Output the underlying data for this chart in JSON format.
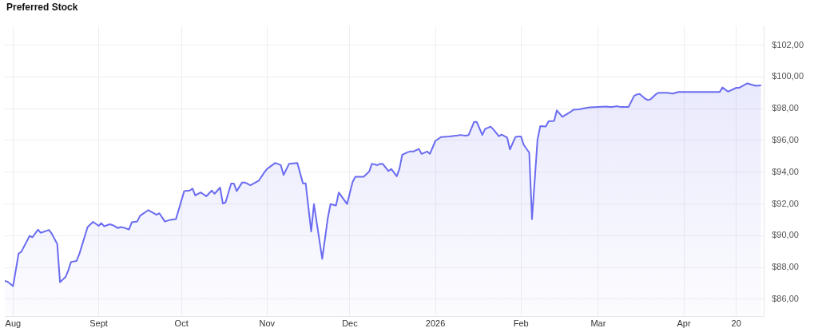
{
  "chart_data": {
    "type": "area",
    "title": "Preferred Stock",
    "x": [
      "2025-07-29",
      "2025-07-30",
      "2025-08-01",
      "2025-08-03",
      "2025-08-04",
      "2025-08-07",
      "2025-08-08",
      "2025-08-10",
      "2025-08-11",
      "2025-08-14",
      "2025-08-15",
      "2025-08-17",
      "2025-08-18",
      "2025-08-20",
      "2025-08-21",
      "2025-08-22",
      "2025-08-24",
      "2025-08-25",
      "2025-08-28",
      "2025-08-30",
      "2025-09-01",
      "2025-09-02",
      "2025-09-03",
      "2025-09-05",
      "2025-09-06",
      "2025-09-08",
      "2025-09-09",
      "2025-09-10",
      "2025-09-12",
      "2025-09-13",
      "2025-09-15",
      "2025-09-16",
      "2025-09-19",
      "2025-09-22",
      "2025-09-23",
      "2025-09-25",
      "2025-09-27",
      "2025-09-29",
      "2025-10-02",
      "2025-10-04",
      "2025-10-05",
      "2025-10-06",
      "2025-10-08",
      "2025-10-10",
      "2025-10-12",
      "2025-10-13",
      "2025-10-15",
      "2025-10-16",
      "2025-10-17",
      "2025-10-19",
      "2025-10-20",
      "2025-10-21",
      "2025-10-23",
      "2025-10-24",
      "2025-10-26",
      "2025-10-29",
      "2025-10-31",
      "2025-11-01",
      "2025-11-02",
      "2025-11-04",
      "2025-11-06",
      "2025-11-07",
      "2025-11-09",
      "2025-11-12",
      "2025-11-14",
      "2025-11-15",
      "2025-11-17",
      "2025-11-18",
      "2025-11-21",
      "2025-11-23",
      "2025-11-24",
      "2025-11-26",
      "2025-11-27",
      "2025-11-29",
      "2025-11-30",
      "2025-12-02",
      "2025-12-03",
      "2025-12-06",
      "2025-12-08",
      "2025-12-09",
      "2025-12-11",
      "2025-12-12",
      "2025-12-13",
      "2025-12-15",
      "2025-12-16",
      "2025-12-18",
      "2025-12-19",
      "2025-12-20",
      "2025-12-22",
      "2025-12-23",
      "2025-12-24",
      "2025-12-26",
      "2025-12-27",
      "2025-12-29",
      "2025-12-30",
      "2026-01-01",
      "2026-01-03",
      "2026-01-06",
      "2026-01-09",
      "2026-01-10",
      "2026-01-12",
      "2026-01-13",
      "2026-01-15",
      "2026-01-16",
      "2026-01-18",
      "2026-01-19",
      "2026-01-21",
      "2026-01-22",
      "2026-01-24",
      "2026-01-25",
      "2026-01-27",
      "2026-01-28",
      "2026-01-30",
      "2026-01-31",
      "2026-02-01",
      "2026-02-02",
      "2026-02-04",
      "2026-02-05",
      "2026-02-07",
      "2026-02-08",
      "2026-02-10",
      "2026-02-11",
      "2026-02-13",
      "2026-02-14",
      "2026-02-16",
      "2026-02-19",
      "2026-02-20",
      "2026-02-22",
      "2026-02-25",
      "2026-02-26",
      "2026-03-01",
      "2026-03-04",
      "2026-03-05",
      "2026-03-06",
      "2026-03-08",
      "2026-03-09",
      "2026-03-12",
      "2026-03-14",
      "2026-03-15",
      "2026-03-16",
      "2026-03-18",
      "2026-03-19",
      "2026-03-20",
      "2026-03-22",
      "2026-03-23",
      "2026-03-26",
      "2026-03-28",
      "2026-03-30",
      "2026-04-01",
      "2026-04-14",
      "2026-04-15",
      "2026-04-17",
      "2026-04-20",
      "2026-04-21",
      "2026-04-24",
      "2026-04-27",
      "2026-04-29"
    ],
    "series": [
      {
        "color": "#6b6cf0",
        "values": [
          87.15,
          87.1,
          86.82,
          88.87,
          88.99,
          89.99,
          89.9,
          90.38,
          90.18,
          90.36,
          90.13,
          89.48,
          87.07,
          87.4,
          87.81,
          88.35,
          88.41,
          88.84,
          90.54,
          90.87,
          90.62,
          90.79,
          90.59,
          90.72,
          90.67,
          90.48,
          90.54,
          90.51,
          90.39,
          90.84,
          90.9,
          91.25,
          91.61,
          91.31,
          91.41,
          90.89,
          91.0,
          91.04,
          92.81,
          92.84,
          92.97,
          92.54,
          92.72,
          92.48,
          92.84,
          92.64,
          93.03,
          92.02,
          92.1,
          93.28,
          93.28,
          92.81,
          93.35,
          93.35,
          93.17,
          93.46,
          93.98,
          94.2,
          94.33,
          94.58,
          94.44,
          93.82,
          94.53,
          94.58,
          93.3,
          93.3,
          90.26,
          91.99,
          88.54,
          91.08,
          91.99,
          91.9,
          92.72,
          92.23,
          91.99,
          93.38,
          93.71,
          93.71,
          94.03,
          94.53,
          94.44,
          94.53,
          94.51,
          94.07,
          94.2,
          93.74,
          94.23,
          95.1,
          95.26,
          95.31,
          95.3,
          95.46,
          95.15,
          95.3,
          95.15,
          95.97,
          96.21,
          96.25,
          96.31,
          96.34,
          96.3,
          96.33,
          97.16,
          97.16,
          96.34,
          96.72,
          96.87,
          96.69,
          96.26,
          96.36,
          96.18,
          95.43,
          96.21,
          96.25,
          96.25,
          95.72,
          95.23,
          91.04,
          96.05,
          96.9,
          96.87,
          97.2,
          97.23,
          97.89,
          97.48,
          97.8,
          97.93,
          97.95,
          98.05,
          98.08,
          98.1,
          98.13,
          98.1,
          98.1,
          98.15,
          98.1,
          98.11,
          98.8,
          98.89,
          98.92,
          98.62,
          98.54,
          98.59,
          98.92,
          99.0,
          99.0,
          98.95,
          99.05,
          99.05,
          99.05,
          99.33,
          99.07,
          99.31,
          99.31,
          99.59,
          99.44,
          99.46
        ]
      }
    ],
    "xlim": [
      "2025-07-29",
      "2026-04-30"
    ],
    "xticks": [
      {
        "value": "2025-08-01",
        "label": "Aug"
      },
      {
        "value": "2025-09-01",
        "label": "Sept"
      },
      {
        "value": "2025-10-01",
        "label": "Oct"
      },
      {
        "value": "2025-11-01",
        "label": "Nov"
      },
      {
        "value": "2025-12-01",
        "label": "Dec"
      },
      {
        "value": "2026-01-01",
        "label": "2026"
      },
      {
        "value": "2026-02-01",
        "label": "Feb"
      },
      {
        "value": "2026-03-01",
        "label": "Mar"
      },
      {
        "value": "2026-04-01",
        "label": "Apr"
      },
      {
        "value": "2026-04-20",
        "label": "20"
      }
    ],
    "ylim": [
      84.9,
      103.2
    ],
    "yticks": [
      {
        "value": 86,
        "label": "$86,00"
      },
      {
        "value": 88,
        "label": "$88,00"
      },
      {
        "value": 90,
        "label": "$90,00"
      },
      {
        "value": 92,
        "label": "$92,00"
      },
      {
        "value": 94,
        "label": "$94,00"
      },
      {
        "value": 96,
        "label": "$96,00"
      },
      {
        "value": 98,
        "label": "$98,00"
      },
      {
        "value": 100,
        "label": "$100,00"
      },
      {
        "value": 102,
        "label": "$102,00"
      }
    ],
    "grid": true,
    "legend": false,
    "marker": "none",
    "line_style": "solid"
  }
}
